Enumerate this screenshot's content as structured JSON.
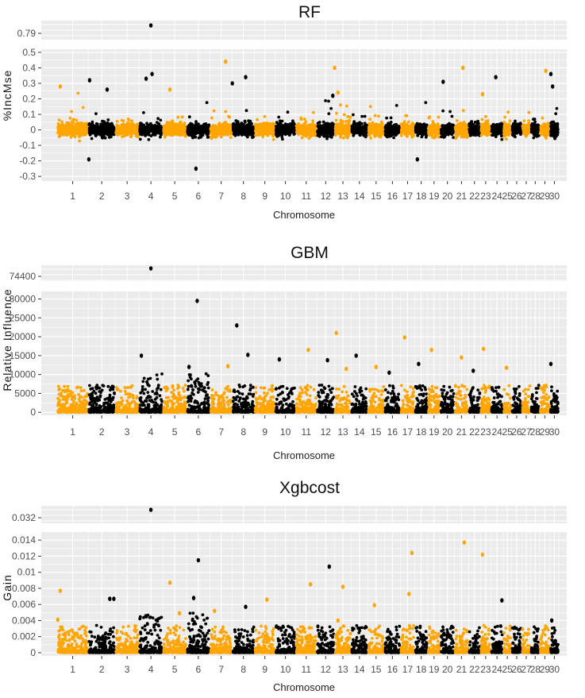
{
  "chart_data": [
    {
      "type": "scatter",
      "title": "RF",
      "xlabel": "Chromosome",
      "ylabel": "%IncMse",
      "categories": [
        "1",
        "2",
        "3",
        "4",
        "5",
        "6",
        "7",
        "8",
        "9",
        "10",
        "11",
        "12",
        "13",
        "14",
        "15",
        "16",
        "17",
        "18",
        "19",
        "20",
        "21",
        "22",
        "23",
        "24",
        "25",
        "26",
        "27",
        "28",
        "29",
        "30"
      ],
      "chrom_sizes": [
        158,
        137,
        121,
        121,
        121,
        119,
        113,
        113,
        105,
        104,
        107,
        91,
        84,
        84,
        85,
        81,
        73,
        66,
        64,
        72,
        71,
        61,
        53,
        62,
        43,
        52,
        45,
        46,
        52,
        45
      ],
      "ylim": [
        -0.33,
        0.52
      ],
      "yticks": [
        -0.3,
        -0.2,
        -0.1,
        0,
        0.1,
        0.2,
        0.3,
        0.4,
        0.5
      ],
      "ytick_labels": [
        "-0.3",
        "-0.2",
        "-0.1",
        "0",
        "0.1",
        "0.2",
        "0.3",
        "0.4",
        "0.5"
      ],
      "break_ticks": [
        0.79
      ],
      "break_tick_labels": [
        "0.79"
      ],
      "outliers": [
        {
          "chr": 4,
          "pos": 0.5,
          "y": 0.79
        },
        {
          "chr": 1,
          "pos": 0.1,
          "y": 0.28
        },
        {
          "chr": 2,
          "pos": 0.05,
          "y": 0.32
        },
        {
          "chr": 2,
          "pos": 0.7,
          "y": 0.26
        },
        {
          "chr": 2,
          "pos": 0.02,
          "y": -0.19
        },
        {
          "chr": 4,
          "pos": 0.3,
          "y": 0.33
        },
        {
          "chr": 4,
          "pos": 0.55,
          "y": 0.36
        },
        {
          "chr": 5,
          "pos": 0.3,
          "y": 0.26
        },
        {
          "chr": 6,
          "pos": 0.4,
          "y": -0.25
        },
        {
          "chr": 7,
          "pos": 0.7,
          "y": 0.44
        },
        {
          "chr": 8,
          "pos": 0.0,
          "y": 0.3
        },
        {
          "chr": 8,
          "pos": 0.6,
          "y": 0.34
        },
        {
          "chr": 12,
          "pos": 0.9,
          "y": 0.22
        },
        {
          "chr": 13,
          "pos": 0.0,
          "y": 0.4
        },
        {
          "chr": 13,
          "pos": 0.2,
          "y": 0.24
        },
        {
          "chr": 18,
          "pos": 0.2,
          "y": -0.19
        },
        {
          "chr": 20,
          "pos": 0.2,
          "y": 0.31
        },
        {
          "chr": 21,
          "pos": 0.6,
          "y": 0.4
        },
        {
          "chr": 23,
          "pos": 0.2,
          "y": 0.23
        },
        {
          "chr": 24,
          "pos": 0.4,
          "y": 0.34
        },
        {
          "chr": 29,
          "pos": 0.6,
          "y": 0.38
        },
        {
          "chr": 30,
          "pos": 0.1,
          "y": 0.36
        },
        {
          "chr": 30,
          "pos": 0.3,
          "y": 0.28
        }
      ]
    },
    {
      "type": "scatter",
      "title": "GBM",
      "xlabel": "Chromosome",
      "ylabel": "Relative Influence",
      "categories": [
        "1",
        "2",
        "3",
        "4",
        "5",
        "6",
        "7",
        "8",
        "9",
        "10",
        "11",
        "12",
        "13",
        "14",
        "15",
        "16",
        "17",
        "18",
        "19",
        "20",
        "21",
        "22",
        "23",
        "24",
        "25",
        "26",
        "27",
        "28",
        "29",
        "30"
      ],
      "chrom_sizes": [
        158,
        137,
        121,
        121,
        121,
        119,
        113,
        113,
        105,
        104,
        107,
        91,
        84,
        84,
        85,
        81,
        73,
        66,
        64,
        72,
        71,
        61,
        53,
        62,
        43,
        52,
        45,
        46,
        52,
        45
      ],
      "ylim": [
        -800,
        32000
      ],
      "yticks": [
        0,
        5000,
        10000,
        15000,
        20000,
        25000,
        30000
      ],
      "ytick_labels": [
        "0",
        "5000",
        "10000",
        "15000",
        "20000",
        "25000",
        "30000"
      ],
      "break_ticks": [
        74400
      ],
      "break_tick_labels": [
        "74400"
      ],
      "outliers": [
        {
          "chr": 4,
          "pos": 0.5,
          "y": 74400
        },
        {
          "chr": 6,
          "pos": 0.45,
          "y": 29500
        },
        {
          "chr": 8,
          "pos": 0.2,
          "y": 23000
        },
        {
          "chr": 13,
          "pos": 0.1,
          "y": 21000
        },
        {
          "chr": 17,
          "pos": 0.3,
          "y": 19800
        },
        {
          "chr": 11,
          "pos": 0.6,
          "y": 16500
        },
        {
          "chr": 19,
          "pos": 0.3,
          "y": 16500
        },
        {
          "chr": 23,
          "pos": 0.3,
          "y": 16800
        },
        {
          "chr": 4,
          "pos": 0.1,
          "y": 15000
        },
        {
          "chr": 8,
          "pos": 0.7,
          "y": 15200
        },
        {
          "chr": 14,
          "pos": 0.3,
          "y": 15000
        },
        {
          "chr": 21,
          "pos": 0.5,
          "y": 14500
        },
        {
          "chr": 10,
          "pos": 0.2,
          "y": 14000
        },
        {
          "chr": 12,
          "pos": 0.6,
          "y": 13800
        },
        {
          "chr": 18,
          "pos": 0.3,
          "y": 12800
        },
        {
          "chr": 30,
          "pos": 0.1,
          "y": 12800
        },
        {
          "chr": 7,
          "pos": 0.8,
          "y": 12200
        },
        {
          "chr": 6,
          "pos": 0.1,
          "y": 12000
        },
        {
          "chr": 15,
          "pos": 0.5,
          "y": 12000
        },
        {
          "chr": 25,
          "pos": 0.4,
          "y": 11800
        },
        {
          "chr": 22,
          "pos": 0.4,
          "y": 11000
        },
        {
          "chr": 16,
          "pos": 0.3,
          "y": 10500
        },
        {
          "chr": 13,
          "pos": 0.7,
          "y": 11500
        }
      ]
    },
    {
      "type": "scatter",
      "title": "Xgbcost",
      "xlabel": "Chromosome",
      "ylabel": "Gain",
      "categories": [
        "1",
        "2",
        "3",
        "4",
        "5",
        "6",
        "7",
        "8",
        "9",
        "10",
        "11",
        "12",
        "13",
        "14",
        "15",
        "16",
        "17",
        "18",
        "19",
        "20",
        "21",
        "22",
        "23",
        "24",
        "25",
        "26",
        "27",
        "28",
        "29",
        "30"
      ],
      "chrom_sizes": [
        158,
        137,
        121,
        121,
        121,
        119,
        113,
        113,
        105,
        104,
        107,
        91,
        84,
        84,
        85,
        81,
        73,
        66,
        64,
        72,
        71,
        61,
        53,
        62,
        43,
        52,
        45,
        46,
        52,
        45
      ],
      "ylim": [
        -0.0004,
        0.015
      ],
      "yticks": [
        0,
        0.002,
        0.004,
        0.006,
        0.008,
        0.01,
        0.012,
        0.014
      ],
      "ytick_labels": [
        "0",
        "0.002",
        "0.004",
        "0.006",
        "0.008",
        "0.01",
        "0.012",
        "0.014"
      ],
      "break_ticks": [
        0.032
      ],
      "break_tick_labels": [
        "0.032"
      ],
      "outliers": [
        {
          "chr": 4,
          "pos": 0.5,
          "y": 0.032
        },
        {
          "chr": 21,
          "pos": 0.7,
          "y": 0.0137
        },
        {
          "chr": 17,
          "pos": 0.8,
          "y": 0.0124
        },
        {
          "chr": 23,
          "pos": 0.2,
          "y": 0.0122
        },
        {
          "chr": 6,
          "pos": 0.5,
          "y": 0.0115
        },
        {
          "chr": 12,
          "pos": 0.7,
          "y": 0.0107
        },
        {
          "chr": 5,
          "pos": 0.3,
          "y": 0.0087
        },
        {
          "chr": 11,
          "pos": 0.7,
          "y": 0.0085
        },
        {
          "chr": 13,
          "pos": 0.5,
          "y": 0.0082
        },
        {
          "chr": 1,
          "pos": 0.1,
          "y": 0.0077
        },
        {
          "chr": 17,
          "pos": 0.6,
          "y": 0.0073
        },
        {
          "chr": 2,
          "pos": 0.8,
          "y": 0.0067
        },
        {
          "chr": 2,
          "pos": 0.95,
          "y": 0.0067
        },
        {
          "chr": 6,
          "pos": 0.3,
          "y": 0.0068
        },
        {
          "chr": 9,
          "pos": 0.6,
          "y": 0.0066
        },
        {
          "chr": 24,
          "pos": 0.9,
          "y": 0.0065
        },
        {
          "chr": 15,
          "pos": 0.4,
          "y": 0.0059
        },
        {
          "chr": 8,
          "pos": 0.6,
          "y": 0.0057
        },
        {
          "chr": 7,
          "pos": 0.2,
          "y": 0.0052
        },
        {
          "chr": 5,
          "pos": 0.7,
          "y": 0.0049
        },
        {
          "chr": 1,
          "pos": 0.02,
          "y": 0.0041
        },
        {
          "chr": 30,
          "pos": 0.2,
          "y": 0.004
        },
        {
          "chr": 13,
          "pos": 0.2,
          "y": 0.004
        }
      ]
    }
  ],
  "colors": {
    "odd_chromosome": "#ffa500",
    "even_chromosome": "#000000",
    "panel_bg": "#ebebeb",
    "grid_major": "#ffffff",
    "tick_text": "#4d4d4d"
  }
}
